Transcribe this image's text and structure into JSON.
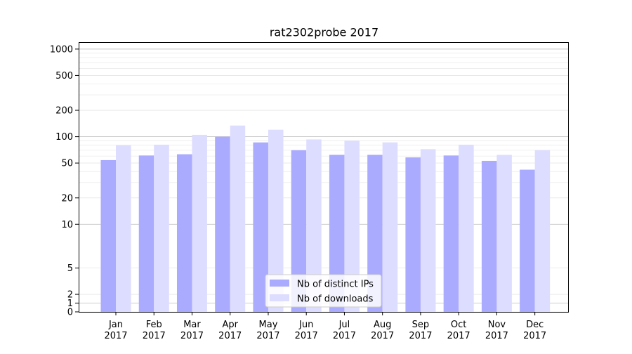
{
  "chart_data": {
    "type": "bar",
    "title": "rat2302probe 2017",
    "xlabel": "",
    "ylabel": "",
    "yscale": "symlog",
    "ylim": [
      0,
      1200
    ],
    "yticks": [
      0,
      1,
      2,
      5,
      10,
      20,
      50,
      100,
      200,
      500,
      1000
    ],
    "ytick_labels": [
      "0",
      "1",
      "2",
      "5",
      "10",
      "20",
      "50",
      "100",
      "200",
      "500",
      "1000"
    ],
    "grid": true,
    "legend_position": "lower-center",
    "categories": [
      {
        "month": "Jan",
        "year": "2017"
      },
      {
        "month": "Feb",
        "year": "2017"
      },
      {
        "month": "Mar",
        "year": "2017"
      },
      {
        "month": "Apr",
        "year": "2017"
      },
      {
        "month": "May",
        "year": "2017"
      },
      {
        "month": "Jun",
        "year": "2017"
      },
      {
        "month": "Jul",
        "year": "2017"
      },
      {
        "month": "Aug",
        "year": "2017"
      },
      {
        "month": "Sep",
        "year": "2017"
      },
      {
        "month": "Oct",
        "year": "2017"
      },
      {
        "month": "Nov",
        "year": "2017"
      },
      {
        "month": "Dec",
        "year": "2017"
      }
    ],
    "series": [
      {
        "name": "Nb of distinct IPs",
        "color": "#aaaaff",
        "values": [
          54,
          61,
          63,
          100,
          86,
          70,
          62,
          62,
          58,
          61,
          53,
          42
        ]
      },
      {
        "name": "Nb of downloads",
        "color": "#ddddff",
        "values": [
          80,
          81,
          105,
          134,
          120,
          93,
          90,
          86,
          72,
          81,
          62,
          70
        ]
      }
    ]
  }
}
